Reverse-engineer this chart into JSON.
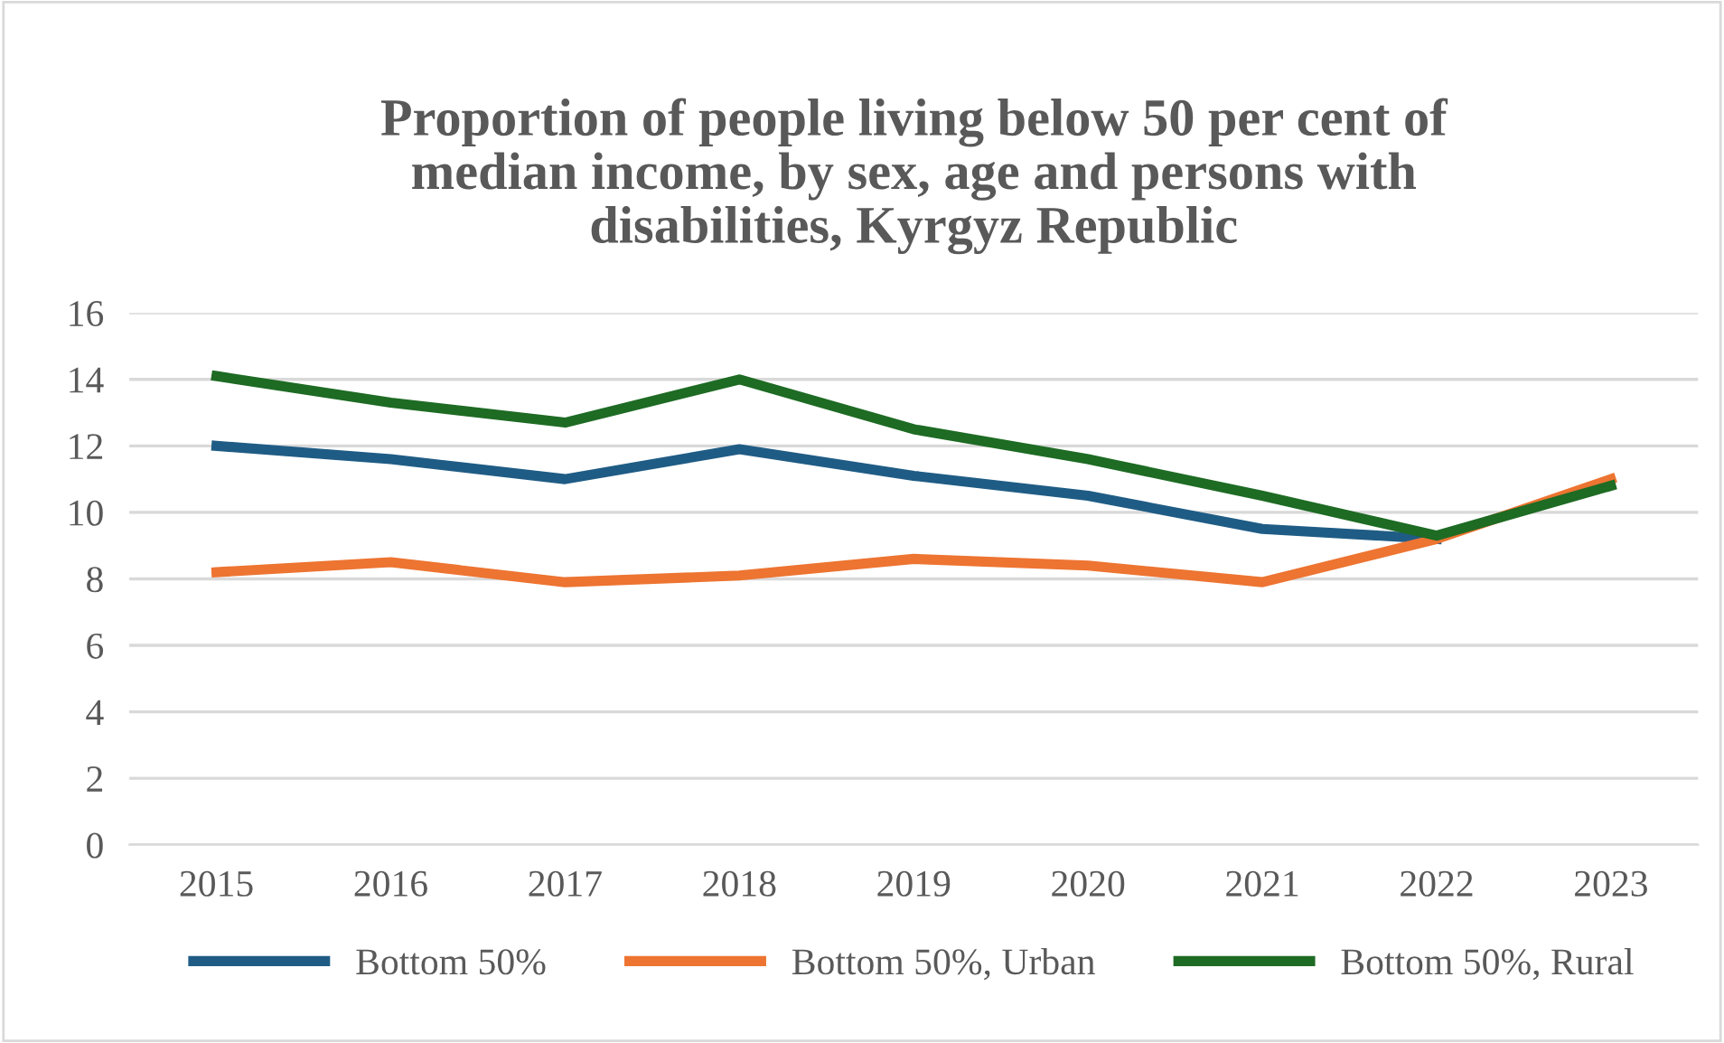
{
  "chart_data": {
    "type": "line",
    "title": "Proportion of people living below 50 per cent of\nmedian income, by sex, age and persons with\ndisabilities, Kyrgyz Republic",
    "categories": [
      "2015",
      "2016",
      "2017",
      "2018",
      "2019",
      "2020",
      "2021",
      "2022",
      "2023"
    ],
    "series": [
      {
        "name": "Bottom 50%",
        "color": "#1f5c85",
        "values": [
          12.0,
          11.6,
          11.0,
          11.9,
          11.1,
          10.5,
          9.5,
          9.2,
          null
        ]
      },
      {
        "name": "Bottom 50%, Urban",
        "color": "#ed7431",
        "values": [
          8.2,
          8.5,
          7.9,
          8.1,
          8.6,
          8.4,
          7.9,
          9.2,
          11.0
        ]
      },
      {
        "name": "Bottom 50%, Rural",
        "color": "#1e6b24",
        "values": [
          14.1,
          13.3,
          12.7,
          14.0,
          12.5,
          11.6,
          10.5,
          9.3,
          10.8
        ]
      }
    ],
    "ylim": [
      0,
      16
    ],
    "yticks": [
      0,
      2,
      4,
      6,
      8,
      10,
      12,
      14,
      16
    ],
    "grid": "y",
    "legend": "bottom",
    "marker": "none",
    "line_style": "solid"
  }
}
